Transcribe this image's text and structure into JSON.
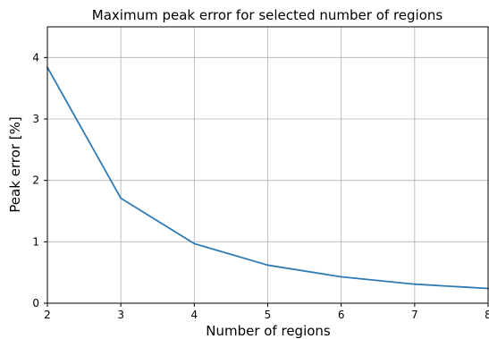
{
  "chart_data": {
    "type": "line",
    "title": "Maximum peak error for selected number of regions",
    "xlabel": "Number of regions",
    "ylabel": "Peak error [%]",
    "xlim": [
      2,
      8
    ],
    "ylim": [
      0,
      4.5
    ],
    "xticks": [
      "2",
      "3",
      "4",
      "5",
      "6",
      "7",
      "8"
    ],
    "yticks": [
      "0",
      "1",
      "2",
      "3",
      "4"
    ],
    "grid": true,
    "series": [
      {
        "color": "#2e7ab4",
        "x": [
          2,
          3,
          4,
          5,
          6,
          7,
          8
        ],
        "y": [
          3.84,
          1.71,
          0.97,
          0.62,
          0.43,
          0.31,
          0.24
        ]
      }
    ]
  }
}
